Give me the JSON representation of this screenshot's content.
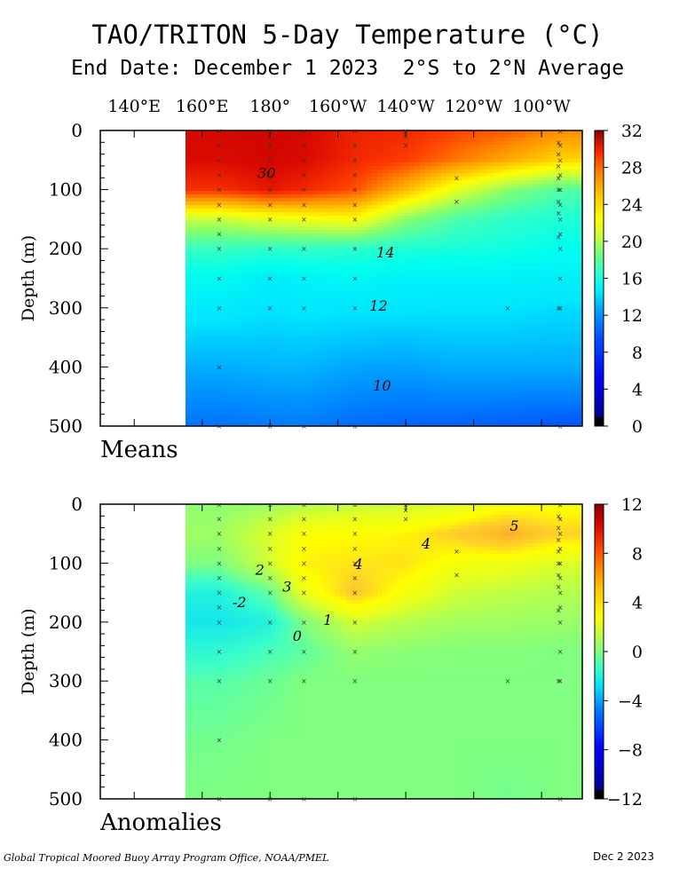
{
  "title": "TAO/TRITON 5-Day Temperature (°C)",
  "subtitle": "End Date: December 1 2023  2°S to 2°N Average",
  "credit": "Global Tropical Moored Buoy Array Program Office, NOAA/PMEL",
  "stamp": "Dec  2 2023",
  "longitude_labels": [
    "140°E",
    "160°E",
    "180°",
    "160°W",
    "140°W",
    "120°W",
    "100°W"
  ],
  "chart_data": [
    {
      "type": "heatmap",
      "panel": "Means",
      "ylabel": "Depth (m)",
      "y_ticks": [
        0,
        100,
        200,
        300,
        400,
        500
      ],
      "ylim": [
        500,
        0
      ],
      "colorbar_ticks": [
        0,
        4,
        8,
        12,
        16,
        20,
        24,
        28,
        32
      ],
      "colorbar_range": [
        0,
        32
      ],
      "contour_labels": [
        {
          "text": "30",
          "lon": 179,
          "depth": 80
        },
        {
          "text": "14",
          "lon": 214,
          "depth": 215
        },
        {
          "text": "12",
          "lon": 212,
          "depth": 305
        },
        {
          "text": "10",
          "lon": 213,
          "depth": 440
        }
      ],
      "profiles": {
        "depths": [
          0,
          50,
          100,
          150,
          200,
          250,
          300,
          400,
          500
        ],
        "columns": [
          {
            "lon": 165,
            "values": [
              30.2,
              30.0,
              28.5,
              20.0,
              15.8,
              13.8,
              12.4,
              10.6,
              9.0
            ]
          },
          {
            "lon": 180,
            "values": [
              30.4,
              30.3,
              29.5,
              21.0,
              15.6,
              12.6,
              12.0,
              10.8,
              9.2
            ]
          },
          {
            "lon": 190,
            "values": [
              30.2,
              30.0,
              28.8,
              21.5,
              15.6,
              13.2,
              12.2,
              10.8,
              9.3
            ]
          },
          {
            "lon": 205,
            "values": [
              29.0,
              28.8,
              27.5,
              22.0,
              15.4,
              13.5,
              12.1,
              10.4,
              8.8
            ]
          },
          {
            "lon": 220,
            "values": [
              28.8,
              28.0,
              24.5,
              18.5,
              15.0,
              13.0,
              12.1,
              10.3,
              8.6
            ]
          },
          {
            "lon": 235,
            "values": [
              27.8,
              26.5,
              21.0,
              16.5,
              14.8,
              13.0,
              12.0,
              10.6,
              8.5
            ]
          },
          {
            "lon": 250,
            "values": [
              27.2,
              25.0,
              18.5,
              15.5,
              14.6,
              13.0,
              12.0,
              10.6,
              8.4
            ]
          },
          {
            "lon": 265,
            "values": [
              26.0,
              23.5,
              16.8,
              15.0,
              14.0,
              12.8,
              11.8,
              10.6,
              8.2
            ]
          }
        ]
      }
    },
    {
      "type": "heatmap",
      "panel": "Anomalies",
      "ylabel": "Depth (m)",
      "y_ticks": [
        0,
        100,
        200,
        300,
        400,
        500
      ],
      "ylim": [
        500,
        0
      ],
      "colorbar_ticks": [
        12,
        8,
        4,
        0,
        -4,
        -8,
        -12
      ],
      "colorbar_range": [
        -12,
        12
      ],
      "contour_labels": [
        {
          "text": "5",
          "lon": 252,
          "depth": 45
        },
        {
          "text": "4",
          "lon": 226,
          "depth": 75
        },
        {
          "text": "4",
          "lon": 206,
          "depth": 110
        },
        {
          "text": "3",
          "lon": 185,
          "depth": 148
        },
        {
          "text": "2",
          "lon": 177,
          "depth": 120
        },
        {
          "text": "1",
          "lon": 197,
          "depth": 205
        },
        {
          "text": "-2",
          "lon": 171,
          "depth": 175
        },
        {
          "text": "0",
          "lon": 188,
          "depth": 232
        }
      ],
      "profiles": {
        "depths": [
          0,
          50,
          100,
          150,
          200,
          250,
          300,
          400,
          500
        ],
        "columns": [
          {
            "lon": 165,
            "values": [
              0.3,
              0.6,
              0.0,
              -1.6,
              -2.0,
              -1.3,
              -0.6,
              -0.2,
              0.0
            ]
          },
          {
            "lon": 180,
            "values": [
              0.6,
              1.8,
              1.6,
              -0.4,
              -1.6,
              -0.8,
              -0.3,
              0.0,
              0.0
            ]
          },
          {
            "lon": 190,
            "values": [
              1.0,
              2.8,
              3.3,
              2.2,
              0.0,
              -0.5,
              0.0,
              0.0,
              0.0
            ]
          },
          {
            "lon": 205,
            "values": [
              1.3,
              3.0,
              3.6,
              4.4,
              1.6,
              0.4,
              0.0,
              0.0,
              0.0
            ]
          },
          {
            "lon": 220,
            "values": [
              1.5,
              3.2,
              3.6,
              2.6,
              1.0,
              0.2,
              0.0,
              0.0,
              0.0
            ]
          },
          {
            "lon": 235,
            "values": [
              1.8,
              4.2,
              2.6,
              1.5,
              0.7,
              0.1,
              0.0,
              0.0,
              0.0
            ]
          },
          {
            "lon": 250,
            "values": [
              2.6,
              5.2,
              2.4,
              1.2,
              0.6,
              0.1,
              0.0,
              0.0,
              -0.2
            ]
          },
          {
            "lon": 265,
            "values": [
              2.8,
              4.0,
              1.8,
              1.0,
              0.5,
              0.0,
              0.0,
              0.0,
              0.0
            ]
          }
        ]
      }
    }
  ],
  "buoy_sites": [
    {
      "lon": 165,
      "depths": [
        1,
        25,
        50,
        75,
        100,
        125,
        150,
        175,
        200,
        250,
        300,
        400,
        500
      ]
    },
    {
      "lon": 180,
      "depths": [
        1,
        25,
        50,
        75,
        100,
        125,
        150,
        200,
        250,
        300,
        500
      ]
    },
    {
      "lon": 190,
      "depths": [
        1,
        25,
        50,
        75,
        100,
        125,
        150,
        200,
        250,
        300,
        500
      ]
    },
    {
      "lon": 205,
      "depths": [
        1,
        25,
        50,
        75,
        100,
        125,
        150,
        200,
        250,
        300,
        500
      ]
    },
    {
      "lon": 220,
      "depths": [
        1,
        10,
        25
      ]
    },
    {
      "lon": 235,
      "depths": [
        80,
        120
      ]
    },
    {
      "lon": 250,
      "depths": [
        300
      ]
    },
    {
      "lon": 265,
      "depths": [
        20,
        40,
        60,
        80,
        100,
        120,
        140,
        180,
        300
      ]
    },
    {
      "lon": 265.5,
      "depths": [
        1,
        25,
        50,
        75,
        100,
        125,
        150,
        175,
        200,
        250,
        300,
        500
      ]
    }
  ]
}
